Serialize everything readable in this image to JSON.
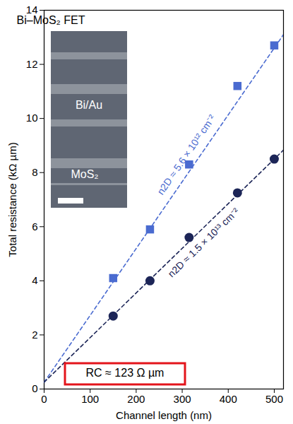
{
  "chart_data": {
    "type": "scatter",
    "title": "Bi–MoS₂ FET",
    "x_label": "Channel length (nm)",
    "y_label": "Total resistance (kΩ µm)",
    "xlim": [
      0,
      520
    ],
    "ylim": [
      0,
      14
    ],
    "xticks": [
      0,
      100,
      200,
      300,
      400,
      500
    ],
    "yticks": [
      0,
      2,
      4,
      6,
      8,
      10,
      12,
      14
    ],
    "series": [
      {
        "name": "n2D ≈ 5.6 × 10¹² cm⁻²",
        "color": "#4a6bd0",
        "marker": "square",
        "x": [
          150,
          230,
          315,
          420,
          500
        ],
        "values": [
          4.1,
          5.9,
          8.3,
          11.2,
          12.7
        ],
        "fit": {
          "x": [
            0,
            520
          ],
          "y": [
            0.25,
            13.1
          ],
          "line_style": "dashed"
        }
      },
      {
        "name": "n2D ≈ 1.5 × 10¹³ cm⁻²",
        "color": "#1c2557",
        "marker": "circle",
        "x": [
          150,
          230,
          315,
          420,
          500
        ],
        "values": [
          2.7,
          4.0,
          5.6,
          7.25,
          8.5
        ],
        "fit": {
          "x": [
            0,
            520
          ],
          "y": [
            0.25,
            8.83
          ],
          "line_style": "dashed"
        }
      }
    ],
    "annotations": [
      {
        "text": "RC ≈ 123 Ω µm",
        "color": "#e3141b"
      }
    ],
    "inset": {
      "labels": [
        "Bi/Au",
        "MoS₂"
      ]
    }
  }
}
